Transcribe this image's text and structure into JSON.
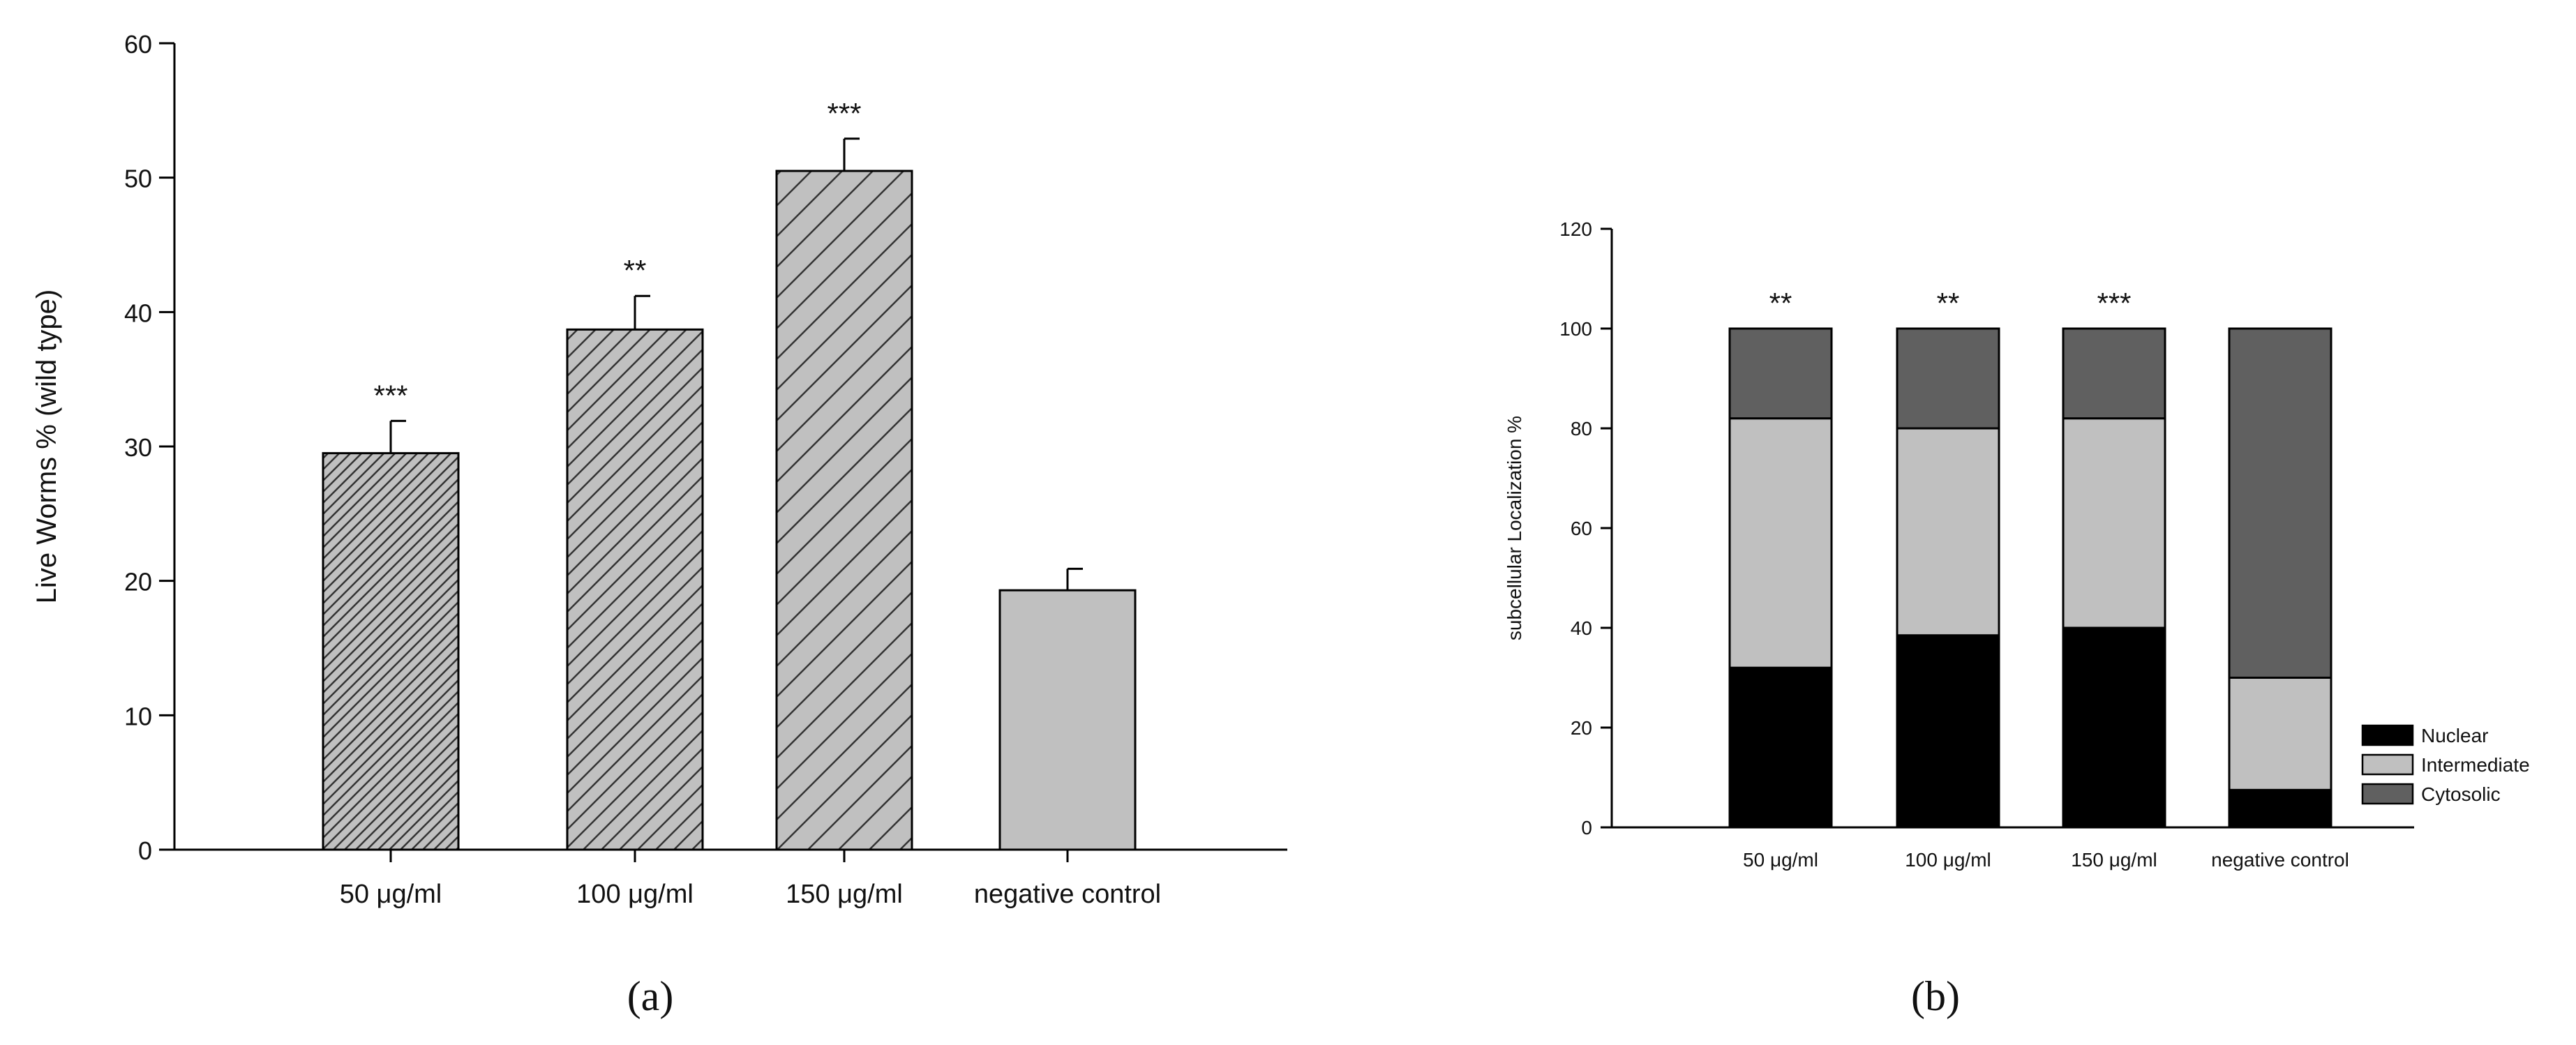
{
  "captions": {
    "a": "(a)",
    "b": "(b)"
  },
  "colors": {
    "axis": "#000000",
    "bar_fill": "#c0c0c0",
    "hatch": "#333333",
    "nuclear": "#000000",
    "intermediate": "#c0c0c0",
    "cytosolic": "#606060"
  },
  "chart_data": [
    {
      "type": "bar",
      "panel": "a",
      "ylabel": "Live Worms % (wild type)",
      "xlabel": "",
      "ylim": [
        0,
        60
      ],
      "yticks": [
        0,
        10,
        20,
        30,
        40,
        50,
        60
      ],
      "categories": [
        "50 μg/ml",
        "100 μg/ml",
        "150 μg/ml",
        "negative control"
      ],
      "values": [
        29.5,
        38.7,
        50.5,
        19.3
      ],
      "errors": [
        2.4,
        2.5,
        2.4,
        1.6
      ],
      "significance": [
        "***",
        "**",
        "***",
        ""
      ],
      "hatch": [
        "dense",
        "medium",
        "sparse",
        "none"
      ],
      "grid": false
    },
    {
      "type": "bar",
      "stacked": true,
      "panel": "b",
      "ylabel": "subcellular Localization %",
      "xlabel": "",
      "ylim": [
        0,
        120
      ],
      "yticks": [
        0,
        20,
        40,
        60,
        80,
        100,
        120
      ],
      "categories": [
        "50 μg/ml",
        "100 μg/ml",
        "150 μg/ml",
        "negative control"
      ],
      "series": [
        {
          "name": "Nuclear",
          "values": [
            32,
            38.5,
            40,
            7.5
          ]
        },
        {
          "name": "Intermediate",
          "values": [
            50,
            41.5,
            42,
            22.5
          ]
        },
        {
          "name": "Cytosolic",
          "values": [
            18,
            20,
            18,
            70
          ]
        }
      ],
      "significance": [
        "**",
        "**",
        "***",
        ""
      ],
      "legend_position": "bottom-right",
      "grid": false
    }
  ]
}
